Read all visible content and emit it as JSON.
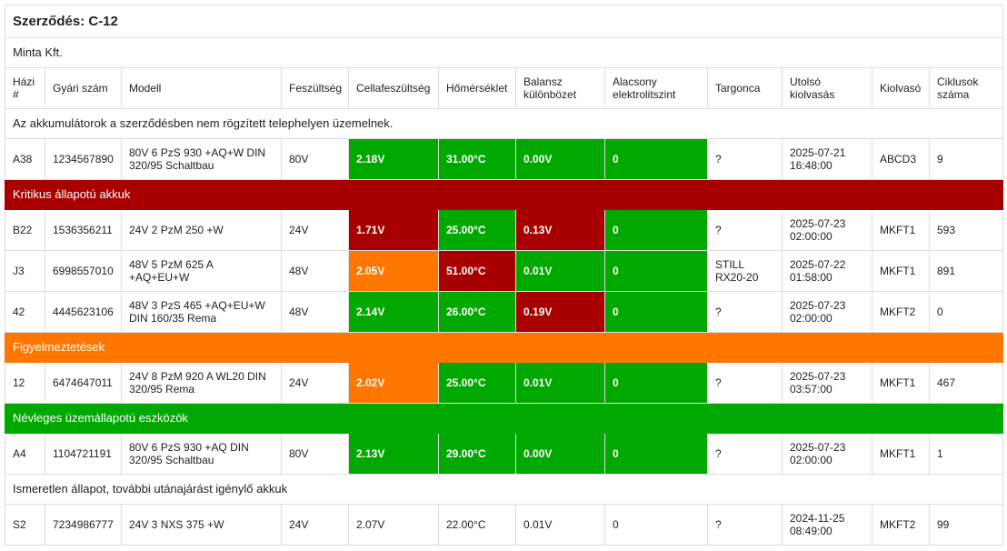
{
  "title": "Szerződés: C-12",
  "company": "Minta Kft.",
  "colors": {
    "green": "#00a800",
    "red": "#a80000",
    "orange": "#ff7700"
  },
  "columns": [
    "Házi #",
    "Gyári szám",
    "Modell",
    "Feszültség",
    "Cellafeszültség",
    "Hőmérséklet",
    "Balansz különbözet",
    "Alacsony elektrolitszint",
    "Targonca",
    "Utolsó kiolvasás",
    "Kiolvasó",
    "Ciklusok száma"
  ],
  "sections": [
    {
      "label": "Az akkumulátorok a szerződésben nem rögzített telephelyen üzemelnek.",
      "style": "note",
      "rows": [
        {
          "cells": [
            "A38",
            "1234567890",
            "80V 6 PzS 930 +AQ+W DIN 320/95 Schaltbau",
            "80V",
            "2.18V",
            "31.00°C",
            "0.00V",
            "0",
            "?",
            "2025-07-21 16:48:00",
            "ABCD3",
            "9"
          ],
          "status": [
            "",
            "",
            "",
            "",
            "green",
            "green",
            "green",
            "green",
            "",
            "",
            "",
            ""
          ]
        }
      ]
    },
    {
      "label": "Kritikus állapotú akkuk",
      "style": "red",
      "rows": [
        {
          "cells": [
            "B22",
            "1536356211",
            "24V 2 PzM 250 +W",
            "24V",
            "1.71V",
            "25.00°C",
            "0.13V",
            "0",
            "?",
            "2025-07-23 02:00:00",
            "MKFT1",
            "593"
          ],
          "status": [
            "",
            "",
            "",
            "",
            "red",
            "green",
            "red",
            "green",
            "",
            "",
            "",
            ""
          ]
        },
        {
          "cells": [
            "J3",
            "6998557010",
            "48V 5 PzM 625 A +AQ+EU+W",
            "48V",
            "2.05V",
            "51.00°C",
            "0.01V",
            "0",
            "STILL RX20-20",
            "2025-07-22 01:58:00",
            "MKFT1",
            "891"
          ],
          "status": [
            "",
            "",
            "",
            "",
            "orange",
            "red",
            "green",
            "green",
            "",
            "",
            "",
            ""
          ]
        },
        {
          "cells": [
            "42",
            "4445623106",
            "48V 3 PzS 465 +AQ+EU+W DIN 160/35 Rema",
            "48V",
            "2.14V",
            "26.00°C",
            "0.19V",
            "0",
            "?",
            "2025-07-23 02:00:00",
            "MKFT2",
            "0"
          ],
          "status": [
            "",
            "",
            "",
            "",
            "green",
            "green",
            "red",
            "green",
            "",
            "",
            "",
            ""
          ]
        }
      ]
    },
    {
      "label": "Figyelmeztetések",
      "style": "orange",
      "rows": [
        {
          "cells": [
            "12",
            "6474647011",
            "24V 8 PzM 920 A WL20 DIN 320/95 Rema",
            "24V",
            "2.02V",
            "25.00°C",
            "0.01V",
            "0",
            "?",
            "2025-07-23 03:57:00",
            "MKFT1",
            "467"
          ],
          "status": [
            "",
            "",
            "",
            "",
            "orange",
            "green",
            "green",
            "green",
            "",
            "",
            "",
            ""
          ]
        }
      ]
    },
    {
      "label": "Névleges üzemállapotú eszközök",
      "style": "green",
      "rows": [
        {
          "cells": [
            "A4",
            "1104721191",
            "80V 6 PzS 930 +AQ DIN 320/95 Schaltbau",
            "80V",
            "2.13V",
            "29.00°C",
            "0.00V",
            "0",
            "?",
            "2025-07-23 02:00:00",
            "MKFT1",
            "1"
          ],
          "status": [
            "",
            "",
            "",
            "",
            "green",
            "green",
            "green",
            "green",
            "",
            "",
            "",
            ""
          ]
        }
      ]
    },
    {
      "label": "Ismeretlen állapot, további utánajárást igénylő akkuk",
      "style": "note",
      "rows": [
        {
          "cells": [
            "S2",
            "7234986777",
            "24V 3 NXS 375 +W",
            "24V",
            "2.07V",
            "22.00°C",
            "0.01V",
            "0",
            "?",
            "2024-11-25 08:49:00",
            "MKFT2",
            "99"
          ],
          "status": [
            "",
            "",
            "",
            "",
            "",
            "",
            "",
            "",
            "",
            "",
            "",
            ""
          ]
        }
      ]
    }
  ]
}
